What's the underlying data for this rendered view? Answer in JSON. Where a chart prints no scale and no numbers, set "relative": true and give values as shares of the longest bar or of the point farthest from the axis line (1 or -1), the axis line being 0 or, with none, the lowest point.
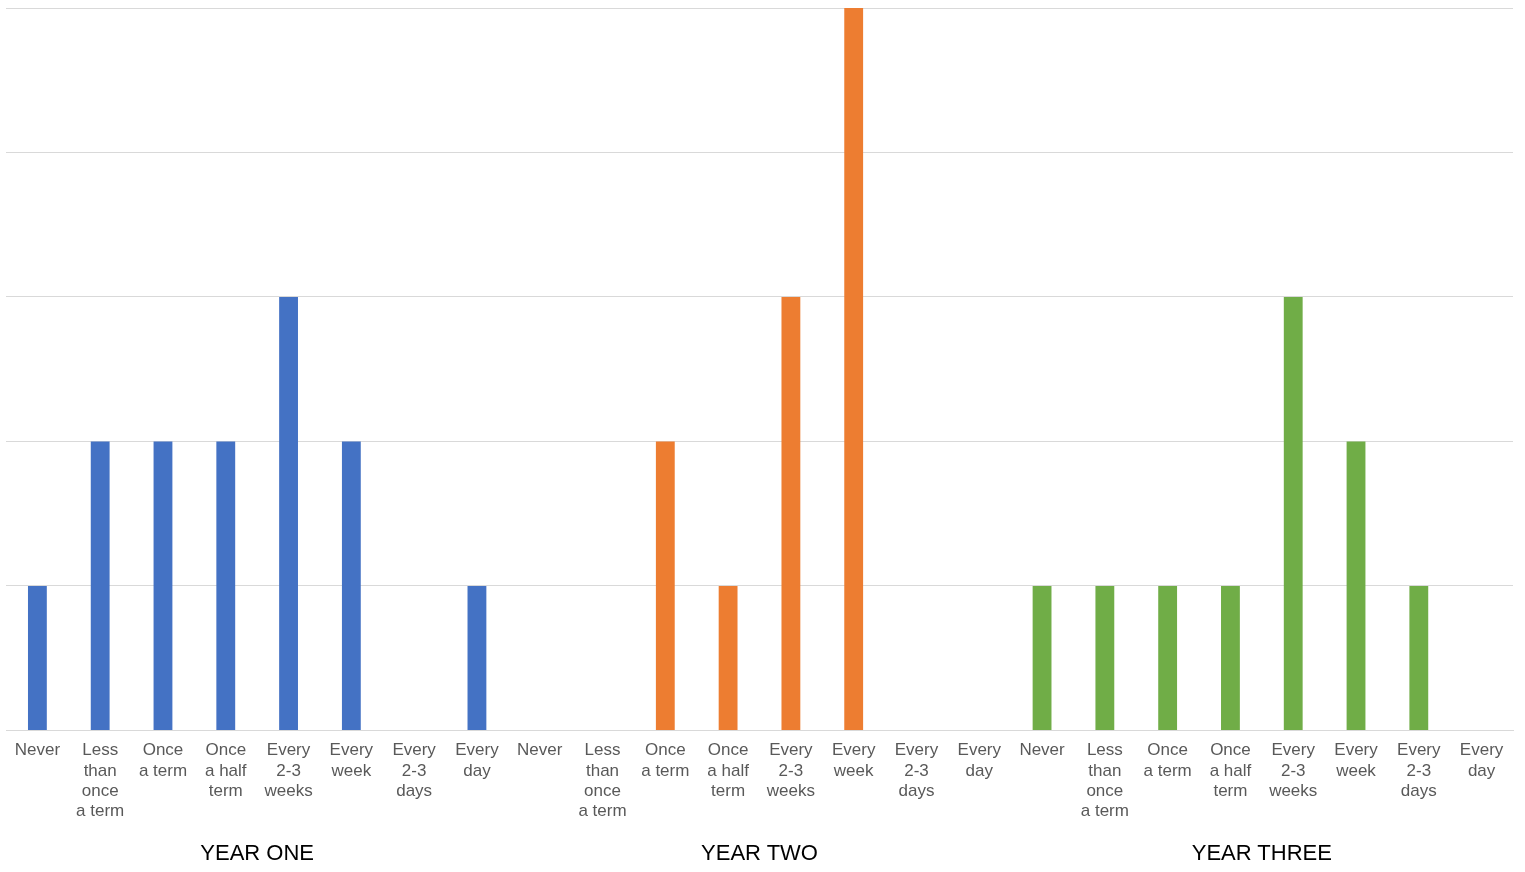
{
  "chart_data": {
    "type": "bar",
    "relative": true,
    "grid": "y",
    "legend": false,
    "categories": [
      "Never",
      "Less than once a term",
      "Once a term",
      "Once a half term",
      "Every 2-3 weeks",
      "Every week",
      "Every 2-3 days",
      "Every day",
      "Never",
      "Less than once a term",
      "Once a term",
      "Once a half term",
      "Every 2-3 weeks",
      "Every week",
      "Every 2-3 days",
      "Every day",
      "Never",
      "Less than once a term",
      "Once a term",
      "Once a half term",
      "Every 2-3 weeks",
      "Every week",
      "Every 2-3 days",
      "Every day"
    ],
    "annotations": [
      "YEAR ONE",
      "YEAR TWO",
      "YEAR THREE"
    ],
    "series": [
      {
        "color": "#4472c4",
        "values": [
          0.2,
          0.4,
          0.4,
          0.4,
          0.6,
          0.4,
          0,
          0.2,
          null,
          null,
          null,
          null,
          null,
          null,
          null,
          null,
          null,
          null,
          null,
          null,
          null,
          null,
          null,
          null
        ]
      },
      {
        "color": "#ed7d31",
        "values": [
          null,
          null,
          null,
          null,
          null,
          null,
          null,
          null,
          0,
          0,
          0.4,
          0.2,
          0.6,
          1,
          0,
          0,
          null,
          null,
          null,
          null,
          null,
          null,
          null,
          null
        ]
      },
      {
        "color": "#70ad47",
        "values": [
          null,
          null,
          null,
          null,
          null,
          null,
          null,
          null,
          null,
          null,
          null,
          null,
          null,
          null,
          null,
          null,
          0.2,
          0.2,
          0.2,
          0.2,
          0.6,
          0.4,
          0.2,
          0
        ]
      }
    ]
  }
}
